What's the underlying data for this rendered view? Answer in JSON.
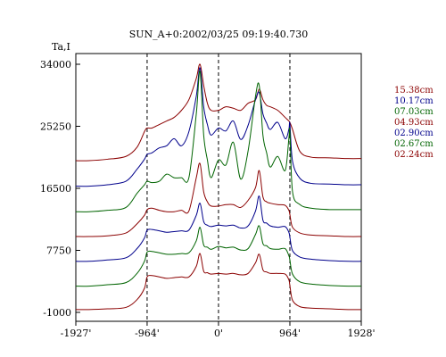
{
  "chart_data": {
    "type": "line",
    "title": "SUN_A+0:2002/03/25 09:19:40.730",
    "ylabel": "Ta,I",
    "xlabel": "",
    "xlim": [
      -1927,
      1928
    ],
    "ylim": [
      -1000,
      34000
    ],
    "x_ticks": [
      {
        "value": -1927,
        "label": "-1927'"
      },
      {
        "value": -964,
        "label": "-964'"
      },
      {
        "value": 0,
        "label": "0'"
      },
      {
        "value": 964,
        "label": "964'"
      },
      {
        "value": 1928,
        "label": "1928'"
      }
    ],
    "y_ticks": [
      {
        "value": 34000,
        "label": "34000"
      },
      {
        "value": 25250,
        "label": "25250"
      },
      {
        "value": 16500,
        "label": "16500"
      },
      {
        "value": 7750,
        "label": "7750"
      },
      {
        "value": -1000,
        "label": "-1000"
      }
    ],
    "vertical_reference_lines": [
      -964,
      0,
      964
    ],
    "grid": false,
    "legend_position": "right",
    "x": [
      -1927,
      -1750,
      -1500,
      -1250,
      -1100,
      -1000,
      -964,
      -900,
      -800,
      -700,
      -600,
      -500,
      -400,
      -300,
      -250,
      -200,
      -150,
      -100,
      0,
      100,
      200,
      300,
      400,
      500,
      550,
      600,
      650,
      700,
      800,
      900,
      950,
      964,
      1000,
      1100,
      1250,
      1500,
      1750,
      1928
    ],
    "series": [
      {
        "name": "15.38cm",
        "color": "#8b0000",
        "values": [
          20400,
          20400,
          20600,
          21000,
          22300,
          24500,
          25000,
          25000,
          25500,
          26000,
          26500,
          27500,
          29000,
          32000,
          34000,
          31000,
          28500,
          27500,
          27500,
          28000,
          27800,
          27500,
          28500,
          29000,
          30500,
          29000,
          28200,
          28000,
          27500,
          26500,
          26000,
          25800,
          24800,
          21700,
          20900,
          20800,
          20700,
          20700
        ]
      },
      {
        "name": "10.17cm",
        "color": "#00008b",
        "values": [
          16800,
          16800,
          17000,
          17500,
          19200,
          20600,
          21300,
          21500,
          22200,
          22500,
          23500,
          22500,
          24500,
          29500,
          33500,
          28000,
          25500,
          24000,
          25000,
          24600,
          26000,
          23400,
          25400,
          29000,
          30000,
          27000,
          25700,
          24800,
          25800,
          23500,
          24800,
          25600,
          20300,
          17900,
          17200,
          17100,
          17000,
          17000
        ]
      },
      {
        "name": "07.03cm",
        "color": "#006400",
        "values": [
          13200,
          13200,
          13400,
          13800,
          15800,
          17000,
          17500,
          17300,
          17500,
          18500,
          18000,
          18000,
          18000,
          27000,
          33000,
          24000,
          20500,
          18000,
          20500,
          19800,
          23000,
          17800,
          21800,
          29500,
          31000,
          24000,
          21500,
          19500,
          21000,
          19000,
          23500,
          24500,
          16000,
          14200,
          13700,
          13500,
          13500,
          13500
        ]
      },
      {
        "name": "04.93cm",
        "color": "#8b0000",
        "values": [
          9700,
          9700,
          9800,
          10200,
          11500,
          12700,
          13500,
          13700,
          13400,
          13200,
          13200,
          13400,
          13300,
          18000,
          20000,
          16000,
          14600,
          14000,
          14000,
          14200,
          14200,
          13800,
          14800,
          16600,
          19000,
          15300,
          14600,
          14400,
          14200,
          14100,
          13400,
          12800,
          11000,
          10200,
          9900,
          9800,
          9700,
          9700
        ]
      },
      {
        "name": "02.90cm",
        "color": "#00008b",
        "values": [
          6200,
          6200,
          6400,
          6700,
          8000,
          9500,
          10600,
          10700,
          10500,
          10300,
          10400,
          10500,
          10600,
          12700,
          14400,
          11800,
          11300,
          11100,
          11300,
          11200,
          11300,
          10900,
          11200,
          13300,
          15400,
          12000,
          11600,
          11200,
          11000,
          11100,
          10300,
          9600,
          7700,
          6800,
          6500,
          6300,
          6200,
          6200
        ]
      },
      {
        "name": "02.67cm",
        "color": "#006400",
        "values": [
          2700,
          2700,
          2900,
          3200,
          4500,
          6200,
          7500,
          7600,
          7400,
          7200,
          7200,
          7300,
          7400,
          9100,
          11000,
          8500,
          8200,
          7900,
          8300,
          8100,
          8200,
          7800,
          8000,
          10000,
          11200,
          8700,
          8400,
          8000,
          7900,
          8000,
          7000,
          6400,
          4400,
          3300,
          3000,
          2800,
          2700,
          2700
        ]
      },
      {
        "name": "02.24cm",
        "color": "#8b0000",
        "values": [
          -600,
          -600,
          -500,
          -300,
          800,
          2400,
          4000,
          4200,
          4000,
          3800,
          3900,
          4000,
          4000,
          5500,
          7300,
          4800,
          4600,
          4400,
          4500,
          4400,
          4500,
          4300,
          4500,
          6000,
          7200,
          5000,
          4700,
          4500,
          4500,
          4400,
          3600,
          2800,
          700,
          -200,
          -400,
          -500,
          -600,
          -600
        ]
      }
    ]
  }
}
